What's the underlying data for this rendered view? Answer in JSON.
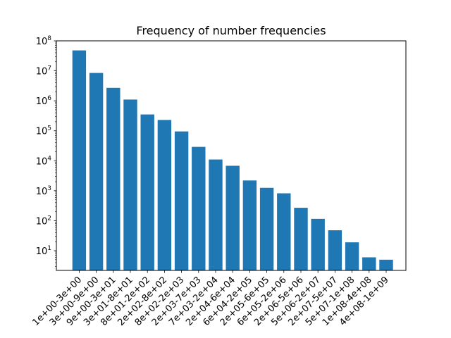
{
  "chart_data": {
    "type": "bar",
    "title": "Frequency of number frequencies",
    "xlabel": "",
    "ylabel": "",
    "yscale": "log",
    "ylim": [
      2.2,
      100000000
    ],
    "yticks": [
      {
        "value": 10,
        "base": "10",
        "exp": "1"
      },
      {
        "value": 100,
        "base": "10",
        "exp": "2"
      },
      {
        "value": 1000,
        "base": "10",
        "exp": "3"
      },
      {
        "value": 10000,
        "base": "10",
        "exp": "4"
      },
      {
        "value": 100000,
        "base": "10",
        "exp": "5"
      },
      {
        "value": 1000000,
        "base": "10",
        "exp": "6"
      },
      {
        "value": 10000000,
        "base": "10",
        "exp": "7"
      },
      {
        "value": 100000000,
        "base": "10",
        "exp": "8"
      }
    ],
    "categories": [
      "1e+00-3e+00",
      "3e+00-9e+00",
      "9e+00-3e+01",
      "3e+01-8e+01",
      "8e+01-2e+02",
      "2e+02-8e+02",
      "8e+02-2e+03",
      "2e+03-7e+03",
      "7e+03-2e+04",
      "2e+04-6e+04",
      "6e+04-2e+05",
      "2e+05-6e+05",
      "6e+05-2e+06",
      "2e+06-5e+06",
      "5e+06-2e+07",
      "2e+07-5e+07",
      "5e+07-1e+08",
      "1e+08-4e+08",
      "4e+08-1e+09"
    ],
    "values": [
      48000000,
      8500000,
      2700000,
      1100000,
      350000,
      230000,
      95000,
      29000,
      11000,
      6800,
      2200,
      1250,
      820,
      270,
      115,
      48,
      19,
      6,
      5
    ],
    "bar_color": "#1f77b4",
    "grid": false,
    "legend": "none"
  }
}
